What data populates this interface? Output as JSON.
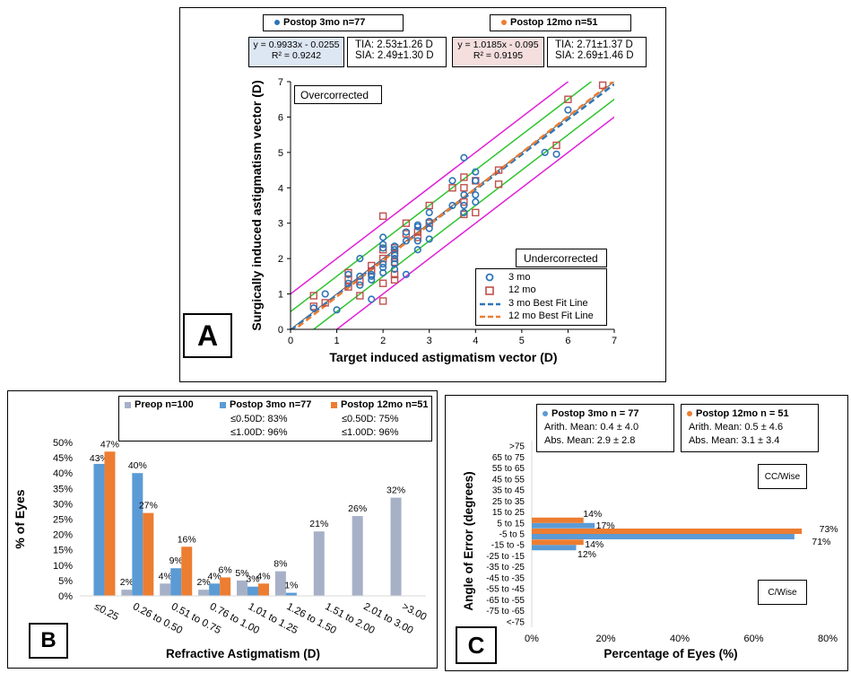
{
  "colors": {
    "mo3": "#2e75b6",
    "mo12": "#c0504d",
    "fit3": "#2e75b6",
    "fit12": "#ed7d31",
    "green": "#2ec42e",
    "magenta": "#e020d8",
    "grey": "#a6b1c8",
    "blue": "#5b9bd5",
    "orange": "#ed7d31",
    "eqA3bg": "#dde6f3",
    "eqA12bg": "#f4dede"
  },
  "panelA": {
    "letter": "A",
    "legend_3mo": "Postop 3mo n=77",
    "legend_12mo": "Postop 12mo n=51",
    "eq_3mo": [
      "y = 0.9933x - 0.0255",
      "R² = 0.9242"
    ],
    "stats_3mo": [
      "TIA: 2.53±1.26 D",
      "SIA: 2.49±1.30 D"
    ],
    "eq_12mo": [
      "y = 1.0185x - 0.095",
      "R² = 0.9195"
    ],
    "stats_12mo": [
      "TIA: 2.71±1.37 D",
      "SIA: 2.69±1.46 D"
    ],
    "annot_over": "Overcorrected",
    "annot_under": "Undercorrected",
    "series_legend": [
      "3 mo",
      "12 mo",
      "3 mo Best Fit Line",
      "12 mo Best Fit Line"
    ]
  },
  "panelB": {
    "letter": "B",
    "legend": [
      {
        "label": "Preop n=100",
        "lines": []
      },
      {
        "label": "Postop  3mo n=77",
        "lines": [
          "≤0.50D: 83%",
          "≤1.00D: 96%"
        ]
      },
      {
        "label": "Postop  12mo n=51",
        "lines": [
          "≤0.50D: 75%",
          "≤1.00D: 96%"
        ]
      }
    ]
  },
  "panelC": {
    "letter": "C",
    "legend_3mo": {
      "label": "Postop  3mo n = 77",
      "lines": [
        "Arith. Mean: 0.4 ± 4.0",
        "Abs. Mean: 2.9 ± 2.8"
      ]
    },
    "legend_12mo": {
      "label": "Postop  12mo n = 51",
      "lines": [
        "Arith. Mean: 0.5 ± 4.6",
        "Abs. Mean: 3.1 ± 3.4"
      ]
    },
    "annot_cc": "CC/Wise",
    "annot_c": "C/Wise"
  },
  "chart_data": [
    {
      "type": "scatter",
      "xlabel": "Target induced astigmatism vector (D)",
      "ylabel": "Surgically induced astigmatism vector (D)",
      "xlim": [
        0,
        7
      ],
      "ylim": [
        0,
        7
      ],
      "xticks": [
        "0",
        "1",
        "2",
        "3",
        "4",
        "5",
        "6",
        "7"
      ],
      "yticks": [
        "0",
        "1",
        "2",
        "3",
        "4",
        "5",
        "6",
        "7"
      ],
      "series": [
        {
          "name": "3 mo",
          "points": [
            [
              0.5,
              0.6
            ],
            [
              0.75,
              1.0
            ],
            [
              1.0,
              0.55
            ],
            [
              1.25,
              1.3
            ],
            [
              1.25,
              1.55
            ],
            [
              1.5,
              1.5
            ],
            [
              1.5,
              2.0
            ],
            [
              1.5,
              1.25
            ],
            [
              1.75,
              1.5
            ],
            [
              1.75,
              1.4
            ],
            [
              1.75,
              0.85
            ],
            [
              1.75,
              1.55
            ],
            [
              2.0,
              2.6
            ],
            [
              2.0,
              2.3
            ],
            [
              2.0,
              1.85
            ],
            [
              2.0,
              1.75
            ],
            [
              2.0,
              1.6
            ],
            [
              2.0,
              2.4
            ],
            [
              2.25,
              2.1
            ],
            [
              2.25,
              2.35
            ],
            [
              2.25,
              2.25
            ],
            [
              2.25,
              2.0
            ],
            [
              2.25,
              1.85
            ],
            [
              2.25,
              1.7
            ],
            [
              2.5,
              2.75
            ],
            [
              2.5,
              2.5
            ],
            [
              2.5,
              1.55
            ],
            [
              2.75,
              2.9
            ],
            [
              2.75,
              2.95
            ],
            [
              2.75,
              2.5
            ],
            [
              2.75,
              2.25
            ],
            [
              3.0,
              3.3
            ],
            [
              3.0,
              2.85
            ],
            [
              3.0,
              2.55
            ],
            [
              3.0,
              3.05
            ],
            [
              3.5,
              4.2
            ],
            [
              3.5,
              3.5
            ],
            [
              3.75,
              4.85
            ],
            [
              3.75,
              3.3
            ],
            [
              3.75,
              3.5
            ],
            [
              3.75,
              3.8
            ],
            [
              4.0,
              4.45
            ],
            [
              4.0,
              3.8
            ],
            [
              4.0,
              3.6
            ],
            [
              4.0,
              4.2
            ],
            [
              5.5,
              5.0
            ],
            [
              5.75,
              4.95
            ],
            [
              6.0,
              6.2
            ]
          ]
        },
        {
          "name": "12 mo",
          "points": [
            [
              0.5,
              0.65
            ],
            [
              0.5,
              0.95
            ],
            [
              0.75,
              0.75
            ],
            [
              1.25,
              1.6
            ],
            [
              1.25,
              1.4
            ],
            [
              1.25,
              1.2
            ],
            [
              1.5,
              0.95
            ],
            [
              1.5,
              1.35
            ],
            [
              1.75,
              1.8
            ],
            [
              1.75,
              1.65
            ],
            [
              2.0,
              3.2
            ],
            [
              2.0,
              2.25
            ],
            [
              2.0,
              2.0
            ],
            [
              2.0,
              1.3
            ],
            [
              2.0,
              0.8
            ],
            [
              2.25,
              2.3
            ],
            [
              2.25,
              2.15
            ],
            [
              2.25,
              1.9
            ],
            [
              2.25,
              1.55
            ],
            [
              2.25,
              1.4
            ],
            [
              2.5,
              3.0
            ],
            [
              2.5,
              2.7
            ],
            [
              2.75,
              2.75
            ],
            [
              2.75,
              2.6
            ],
            [
              3.0,
              3.5
            ],
            [
              3.0,
              3.0
            ],
            [
              3.5,
              4.0
            ],
            [
              3.75,
              4.3
            ],
            [
              3.75,
              4.0
            ],
            [
              3.75,
              3.25
            ],
            [
              3.75,
              3.6
            ],
            [
              4.0,
              4.2
            ],
            [
              4.0,
              3.3
            ],
            [
              4.5,
              4.5
            ],
            [
              4.5,
              4.1
            ],
            [
              5.75,
              5.2
            ],
            [
              6.0,
              6.5
            ],
            [
              6.75,
              6.9
            ]
          ]
        }
      ],
      "fit_lines": [
        {
          "name": "3 mo Best Fit Line",
          "slope": 0.9933,
          "intercept": -0.0255
        },
        {
          "name": "12 mo Best Fit Line",
          "slope": 1.0185,
          "intercept": -0.095
        }
      ],
      "reference_lines": {
        "green_offsets": [
          0.5,
          -0.5
        ],
        "magenta_offsets": [
          1.0,
          -1.0
        ]
      },
      "legend_position": "bottom-right",
      "grid": false
    },
    {
      "type": "bar",
      "ylabel": "% of Eyes",
      "xlabel": "Refractive Astigmatism (D)",
      "categories": [
        "≤0.25",
        "0.26 to 0.50",
        "0.51 to 0.75",
        "0.76 to 1.00",
        "1.01 to 1.25",
        "1.26 to 1.50",
        "1.51 to 2.00",
        "2.01 to 3.00",
        ">3.00"
      ],
      "yticks": [
        "0%",
        "5%",
        "10%",
        "15%",
        "20%",
        "25%",
        "30%",
        "35%",
        "40%",
        "45%",
        "50%"
      ],
      "ylim": [
        0,
        50
      ],
      "series": [
        {
          "name": "Preop n=100",
          "values": [
            0,
            2,
            4,
            2,
            5,
            8,
            21,
            26,
            32
          ],
          "labels": [
            "",
            "2%",
            "4%",
            "2%",
            "5%",
            "8%",
            "21%",
            "26%",
            "32%"
          ]
        },
        {
          "name": "Postop  3mo n=77",
          "values": [
            43,
            40,
            9,
            4,
            3,
            1,
            0,
            0,
            0
          ],
          "labels": [
            "43%",
            "40%",
            "9%",
            "4%",
            "3%",
            "1%",
            "",
            "",
            ""
          ]
        },
        {
          "name": "Postop  12mo n=51",
          "values": [
            47,
            27,
            16,
            6,
            4,
            0,
            0,
            0,
            0
          ],
          "labels": [
            "47%",
            "27%",
            "16%",
            "6%",
            "4%",
            "",
            "",
            "",
            ""
          ]
        }
      ],
      "legend_position": "top",
      "grid": false
    },
    {
      "type": "bar",
      "orientation": "horizontal",
      "ylabel": "Angle of Error (degrees)",
      "xlabel": "Percentage of Eyes (%)",
      "categories": [
        ">75",
        "65 to 75",
        "55 to 65",
        "45 to 55",
        "35 to 45",
        "25 to 35",
        "15 to 25",
        "5 to 15",
        "-5 to 5",
        "-15 to -5",
        "-25 to -15",
        "-35 to -25",
        "-45 to -35",
        "-55 to -45",
        "-65 to -55",
        "-75 to -65",
        "<-75"
      ],
      "xticks": [
        "0%",
        "20%",
        "40%",
        "60%",
        "80%"
      ],
      "xlim": [
        0,
        80
      ],
      "series": [
        {
          "name": "Postop  3mo n = 77",
          "values": [
            0,
            0,
            0,
            0,
            0,
            0,
            0,
            17,
            71,
            12,
            0,
            0,
            0,
            0,
            0,
            0,
            0
          ],
          "labels": [
            "",
            "",
            "",
            "",
            "",
            "",
            "",
            "17%",
            "71%",
            "12%",
            "",
            "",
            "",
            "",
            "",
            "",
            ""
          ]
        },
        {
          "name": "Postop  12mo n = 51",
          "values": [
            0,
            0,
            0,
            0,
            0,
            0,
            0,
            14,
            73,
            14,
            0,
            0,
            0,
            0,
            0,
            0,
            0
          ],
          "labels": [
            "",
            "",
            "",
            "",
            "",
            "",
            "",
            "14%",
            "73%",
            "14%",
            "",
            "",
            "",
            "",
            "",
            "",
            ""
          ]
        }
      ],
      "legend_position": "top",
      "grid": false
    }
  ]
}
